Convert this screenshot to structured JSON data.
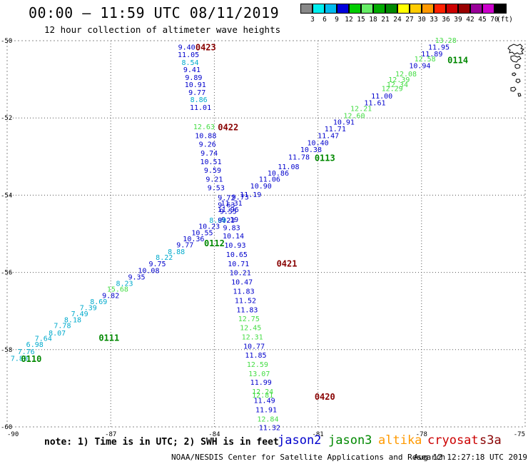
{
  "title": "00:00 – 11:59 UTC 08/11/2019",
  "subtitle": "12 hour collection of altimeter wave heights",
  "note": "note: 1) Time is in UTC; 2) SWH is in feet",
  "satellites": [
    {
      "name": "jason2",
      "color": "#0000cc"
    },
    {
      "name": "jason3",
      "color": "#008800"
    },
    {
      "name": "altika",
      "color": "#ff9900"
    },
    {
      "name": "cryosat",
      "color": "#cc0000"
    },
    {
      "name": "s3a",
      "color": "#880000"
    }
  ],
  "credit": "NOAA/NESDIS Center for Satellite Applications and Research",
  "generated": "Aug 12 12:27:18 UTC 2019",
  "colorbar": {
    "ticks": [
      "3",
      "6",
      "9",
      "12",
      "15",
      "18",
      "21",
      "24",
      "27",
      "30",
      "33",
      "36",
      "39",
      "42",
      "45",
      "70"
    ],
    "unit": "(ft)",
    "colors": [
      "#888888",
      "#00eeee",
      "#00bbee",
      "#0000dd",
      "#00cc00",
      "#66ee66",
      "#00aa00",
      "#008800",
      "#ffff00",
      "#ffcc00",
      "#ff9900",
      "#ff2200",
      "#cc0000",
      "#990000",
      "#990099",
      "#cc00cc",
      "#000000"
    ]
  },
  "chart_data": {
    "type": "scatter",
    "xlim": [
      -90,
      -75
    ],
    "ylim": [
      -60,
      -50
    ],
    "xticks": [
      "-90",
      "-87",
      "-84",
      "-81",
      "-78",
      "-75"
    ],
    "yticks": [
      "-50",
      "-52",
      "-54",
      "-56",
      "-58",
      "-60"
    ],
    "grid": true,
    "coastline_color": "#000000",
    "series": [
      {
        "track": "descending",
        "values": [
          {
            "lon": -84.8,
            "lat": -50.16,
            "swh": "9.40",
            "color": "#0000cc"
          },
          {
            "lon": -84.75,
            "lat": -50.35,
            "swh": "11.05",
            "color": "#0000cc"
          },
          {
            "lon": -84.7,
            "lat": -50.55,
            "swh": "8.54",
            "color": "#00aacc"
          },
          {
            "lon": -84.65,
            "lat": -50.74,
            "swh": "9.41",
            "color": "#0000cc"
          },
          {
            "lon": -84.6,
            "lat": -50.94,
            "swh": "9.89",
            "color": "#0000cc"
          },
          {
            "lon": -84.55,
            "lat": -51.13,
            "swh": "10.91",
            "color": "#0000cc"
          },
          {
            "lon": -84.5,
            "lat": -51.33,
            "swh": "9.77",
            "color": "#0000cc"
          },
          {
            "lon": -84.45,
            "lat": -51.52,
            "swh": "8.86",
            "color": "#00aacc"
          },
          {
            "lon": -84.4,
            "lat": -51.72,
            "swh": "11.01",
            "color": "#0000cc"
          },
          {
            "lon": -84.3,
            "lat": -52.22,
            "swh": "12.63",
            "color": "#44dd44"
          },
          {
            "lon": -84.25,
            "lat": -52.45,
            "swh": "10.88",
            "color": "#0000cc"
          },
          {
            "lon": -84.2,
            "lat": -52.67,
            "swh": "9.26",
            "color": "#0000cc"
          },
          {
            "lon": -84.15,
            "lat": -52.9,
            "swh": "9.74",
            "color": "#0000cc"
          },
          {
            "lon": -84.1,
            "lat": -53.12,
            "swh": "10.51",
            "color": "#0000cc"
          },
          {
            "lon": -84.05,
            "lat": -53.35,
            "swh": "9.59",
            "color": "#0000cc"
          },
          {
            "lon": -84,
            "lat": -53.58,
            "swh": "9.21",
            "color": "#0000cc"
          },
          {
            "lon": -83.95,
            "lat": -53.8,
            "swh": "9.53",
            "color": "#0000cc"
          },
          {
            "lon": -83.65,
            "lat": -54.06,
            "swh": "9.72",
            "color": "#0000cc"
          },
          {
            "lon": -83.65,
            "lat": -54.24,
            "swh": "9.63",
            "color": "#0000cc"
          },
          {
            "lon": -83.6,
            "lat": -54.41,
            "swh": "9.55",
            "color": "#0000cc"
          },
          {
            "lon": -83.55,
            "lat": -54.62,
            "swh": "9.19",
            "color": "#0000cc"
          },
          {
            "lon": -83.5,
            "lat": -54.83,
            "swh": "9.83",
            "color": "#0000cc"
          },
          {
            "lon": -83.45,
            "lat": -55.05,
            "swh": "10.14",
            "color": "#0000cc"
          },
          {
            "lon": -83.4,
            "lat": -55.29,
            "swh": "10.93",
            "color": "#0000cc"
          },
          {
            "lon": -83.35,
            "lat": -55.53,
            "swh": "10.65",
            "color": "#0000cc"
          },
          {
            "lon": -83.3,
            "lat": -55.77,
            "swh": "10.71",
            "color": "#0000cc"
          },
          {
            "lon": -83.25,
            "lat": -56.0,
            "swh": "10.21",
            "color": "#0000cc"
          },
          {
            "lon": -83.2,
            "lat": -56.24,
            "swh": "10.47",
            "color": "#0000cc"
          },
          {
            "lon": -83.15,
            "lat": -56.48,
            "swh": "11.83",
            "color": "#0000cc"
          },
          {
            "lon": -83.1,
            "lat": -56.72,
            "swh": "11.52",
            "color": "#0000cc"
          },
          {
            "lon": -83.05,
            "lat": -56.96,
            "swh": "11.83",
            "color": "#0000cc"
          },
          {
            "lon": -83,
            "lat": -57.19,
            "swh": "12.75",
            "color": "#44dd44"
          },
          {
            "lon": -82.95,
            "lat": -57.42,
            "swh": "12.45",
            "color": "#44dd44"
          },
          {
            "lon": -82.9,
            "lat": -57.66,
            "swh": "12.31",
            "color": "#44dd44"
          },
          {
            "lon": -82.85,
            "lat": -57.9,
            "swh": "10.77",
            "color": "#0000cc"
          },
          {
            "lon": -82.8,
            "lat": -58.13,
            "swh": "11.85",
            "color": "#0000cc"
          },
          {
            "lon": -82.75,
            "lat": -58.37,
            "swh": "12.59",
            "color": "#44dd44"
          },
          {
            "lon": -82.7,
            "lat": -58.61,
            "swh": "13.07",
            "color": "#44dd44"
          },
          {
            "lon": -82.65,
            "lat": -58.84,
            "swh": "11.99",
            "color": "#0000cc"
          },
          {
            "lon": -82.6,
            "lat": -59.08,
            "swh": "12.24",
            "color": "#44dd44"
          },
          {
            "lon": -82.6,
            "lat": -59.17,
            "swh": "12.81",
            "color": "#44dd44"
          },
          {
            "lon": -82.55,
            "lat": -59.31,
            "swh": "11.49",
            "color": "#0000cc"
          },
          {
            "lon": -82.5,
            "lat": -59.55,
            "swh": "11.91",
            "color": "#0000cc"
          },
          {
            "lon": -82.45,
            "lat": -59.79,
            "swh": "12.84",
            "color": "#44dd44"
          },
          {
            "lon": -82.4,
            "lat": -60.01,
            "swh": "11.32",
            "color": "#0000cc"
          }
        ]
      },
      {
        "track": "ascending",
        "values": [
          {
            "lon": -89.65,
            "lat": -58.22,
            "swh": "7.80",
            "color": "#00aacc"
          },
          {
            "lon": -89.45,
            "lat": -58.04,
            "swh": "7.76",
            "color": "#00aacc"
          },
          {
            "lon": -89.2,
            "lat": -57.86,
            "swh": "6.98",
            "color": "#00aacc"
          },
          {
            "lon": -88.95,
            "lat": -57.7,
            "swh": "7.64",
            "color": "#00aacc"
          },
          {
            "lon": -88.55,
            "lat": -57.56,
            "swh": "8.07",
            "color": "#00aacc"
          },
          {
            "lon": -88.4,
            "lat": -57.37,
            "swh": "7.78",
            "color": "#00aacc"
          },
          {
            "lon": -88.1,
            "lat": -57.22,
            "swh": "8.18",
            "color": "#00aacc"
          },
          {
            "lon": -87.9,
            "lat": -57.06,
            "swh": "7.49",
            "color": "#00aacc"
          },
          {
            "lon": -87.65,
            "lat": -56.9,
            "swh": "7.39",
            "color": "#00aacc"
          },
          {
            "lon": -87.35,
            "lat": -56.75,
            "swh": "8.69",
            "color": "#00aacc"
          },
          {
            "lon": -87.0,
            "lat": -56.59,
            "swh": "9.82",
            "color": "#0000cc"
          },
          {
            "lon": -86.8,
            "lat": -56.42,
            "swh": "15.68",
            "color": "#44dd44"
          },
          {
            "lon": -86.6,
            "lat": -56.28,
            "swh": "8.23",
            "color": "#00aacc"
          },
          {
            "lon": -86.25,
            "lat": -56.11,
            "swh": "9.35",
            "color": "#0000cc"
          },
          {
            "lon": -85.9,
            "lat": -55.94,
            "swh": "10.08",
            "color": "#0000cc"
          },
          {
            "lon": -85.65,
            "lat": -55.77,
            "swh": "9.75",
            "color": "#0000cc"
          },
          {
            "lon": -85.45,
            "lat": -55.6,
            "swh": "8.22",
            "color": "#00aacc"
          },
          {
            "lon": -85.1,
            "lat": -55.45,
            "swh": "8.88",
            "color": "#00aacc"
          },
          {
            "lon": -84.85,
            "lat": -55.28,
            "swh": "9.77",
            "color": "#0000cc"
          },
          {
            "lon": -84.6,
            "lat": -55.12,
            "swh": "10.36",
            "color": "#0000cc"
          },
          {
            "lon": -84.35,
            "lat": -54.96,
            "swh": "10.55",
            "color": "#0000cc"
          },
          {
            "lon": -84.15,
            "lat": -54.8,
            "swh": "10.23",
            "color": "#0000cc"
          },
          {
            "lon": -83.9,
            "lat": -54.64,
            "swh": "8.80",
            "color": "#00aacc"
          },
          {
            "lon": -83.65,
            "lat": -54.64,
            "swh": "9.23",
            "color": "#0000cc"
          },
          {
            "lon": -83.6,
            "lat": -54.36,
            "swh": "11.96",
            "color": "#0000cc"
          },
          {
            "lon": -83.5,
            "lat": -54.2,
            "swh": "11.31",
            "color": "#0000cc"
          },
          {
            "lon": -83.25,
            "lat": -54.04,
            "swh": "9.73",
            "color": "#0000cc"
          },
          {
            "lon": -82.95,
            "lat": -53.97,
            "swh": "11.19",
            "color": "#0000cc"
          },
          {
            "lon": -82.65,
            "lat": -53.75,
            "swh": "10.90",
            "color": "#0000cc"
          },
          {
            "lon": -82.4,
            "lat": -53.58,
            "swh": "11.06",
            "color": "#0000cc"
          },
          {
            "lon": -82.15,
            "lat": -53.42,
            "swh": "10.86",
            "color": "#0000cc"
          },
          {
            "lon": -81.85,
            "lat": -53.25,
            "swh": "11.08",
            "color": "#0000cc"
          },
          {
            "lon": -81.55,
            "lat": -53.0,
            "swh": "11.78",
            "color": "#0000cc"
          },
          {
            "lon": -81.2,
            "lat": -52.81,
            "swh": "10.38",
            "color": "#0000cc"
          },
          {
            "lon": -81.0,
            "lat": -52.63,
            "swh": "10.40",
            "color": "#0000cc"
          },
          {
            "lon": -80.7,
            "lat": -52.45,
            "swh": "11.47",
            "color": "#0000cc"
          },
          {
            "lon": -80.5,
            "lat": -52.27,
            "swh": "11.71",
            "color": "#0000cc"
          },
          {
            "lon": -80.25,
            "lat": -52.1,
            "swh": "10.91",
            "color": "#0000cc"
          },
          {
            "lon": -79.95,
            "lat": -51.93,
            "swh": "12.60",
            "color": "#44dd44"
          },
          {
            "lon": -79.75,
            "lat": -51.75,
            "swh": "12.21",
            "color": "#44dd44"
          },
          {
            "lon": -79.35,
            "lat": -51.6,
            "swh": "11.61",
            "color": "#0000cc"
          },
          {
            "lon": -79.15,
            "lat": -51.42,
            "swh": "11.00",
            "color": "#0000cc"
          },
          {
            "lon": -78.85,
            "lat": -51.23,
            "swh": "12.29",
            "color": "#44dd44"
          },
          {
            "lon": -78.7,
            "lat": -51.13,
            "swh": "12.34",
            "color": "#44dd44"
          },
          {
            "lon": -78.65,
            "lat": -51.0,
            "swh": "12.39",
            "color": "#44dd44"
          },
          {
            "lon": -78.45,
            "lat": -50.85,
            "swh": "12.08",
            "color": "#44dd44"
          },
          {
            "lon": -78.05,
            "lat": -50.64,
            "swh": "10.94",
            "color": "#0000cc"
          },
          {
            "lon": -77.9,
            "lat": -50.46,
            "swh": "12.58",
            "color": "#44dd44"
          },
          {
            "lon": -77.7,
            "lat": -50.33,
            "swh": "11.89",
            "color": "#0000cc"
          },
          {
            "lon": -77.5,
            "lat": -50.16,
            "swh": "11.95",
            "color": "#0000cc"
          },
          {
            "lon": -77.3,
            "lat": -49.98,
            "swh": "13.28",
            "color": "#44dd44"
          }
        ]
      }
    ],
    "time_labels": [
      {
        "label": "0423",
        "lon": -84.25,
        "lat": -50.18,
        "color": "#880000"
      },
      {
        "label": "0422",
        "lon": -83.6,
        "lat": -52.25,
        "color": "#880000"
      },
      {
        "label": "0421",
        "lon": -81.9,
        "lat": -55.78,
        "color": "#880000"
      },
      {
        "label": "0420",
        "lon": -80.8,
        "lat": -59.22,
        "color": "#880000"
      },
      {
        "label": "0114",
        "lon": -76.95,
        "lat": -50.51,
        "color": "#008800"
      },
      {
        "label": "0113",
        "lon": -80.8,
        "lat": -53.04,
        "color": "#008800"
      },
      {
        "label": "0112",
        "lon": -84.0,
        "lat": -55.25,
        "color": "#008800"
      },
      {
        "label": "0111",
        "lon": -87.05,
        "lat": -57.7,
        "color": "#008800"
      },
      {
        "label": "0110",
        "lon": -89.3,
        "lat": -58.24,
        "color": "#008800"
      }
    ]
  }
}
